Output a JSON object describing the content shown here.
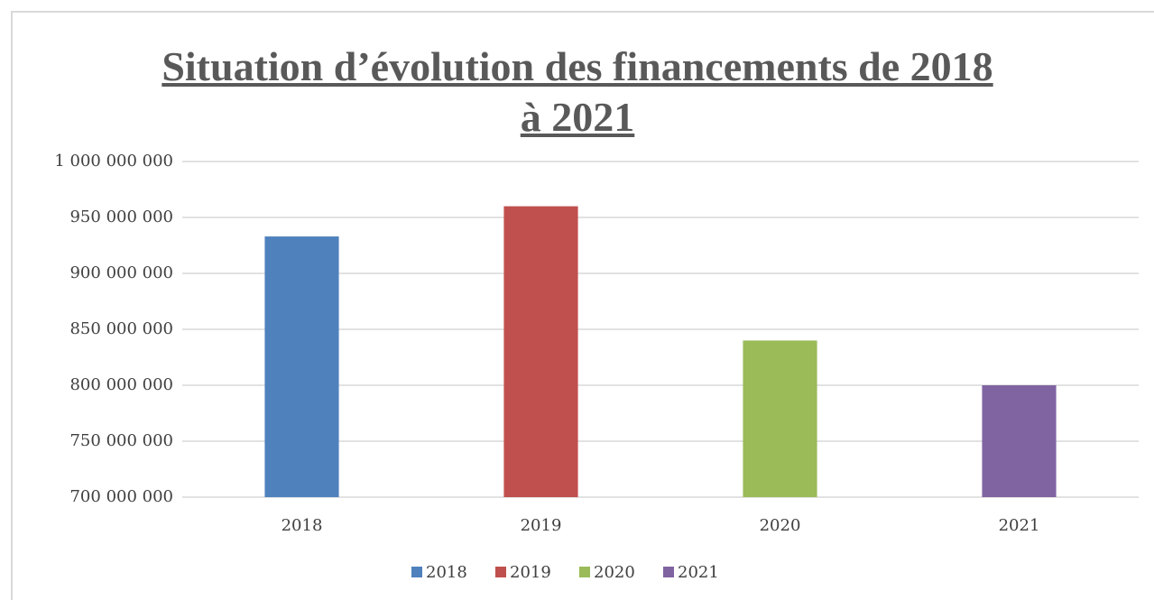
{
  "chart_data": {
    "type": "bar",
    "title": "Situation d’évolution des financements de 2018 à 2021",
    "categories": [
      "2018",
      "2019",
      "2020",
      "2021"
    ],
    "values": [
      933000000,
      960000000,
      840000000,
      800000000
    ],
    "colors": [
      "#4f81bd",
      "#c0504d",
      "#9bbb59",
      "#8064a2"
    ],
    "ylim": [
      700000000,
      1000000000
    ],
    "yticks": [
      {
        "value": 700000000,
        "label": "700 000 000"
      },
      {
        "value": 750000000,
        "label": "750 000 000"
      },
      {
        "value": 800000000,
        "label": "800 000 000"
      },
      {
        "value": 850000000,
        "label": "850 000 000"
      },
      {
        "value": 900000000,
        "label": "900 000 000"
      },
      {
        "value": 950000000,
        "label": "950 000 000"
      },
      {
        "value": 1000000000,
        "label": "1 000 000 000"
      }
    ],
    "grid": true,
    "legend": "bottom"
  }
}
